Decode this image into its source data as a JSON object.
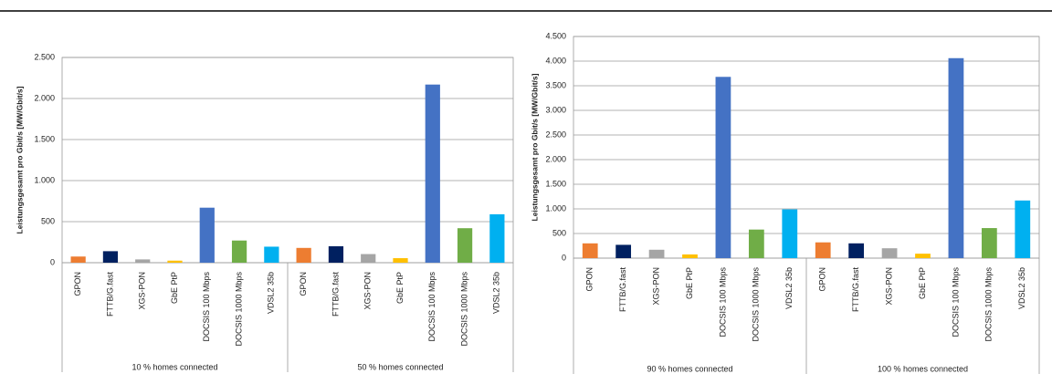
{
  "chart_data": [
    {
      "type": "bar",
      "y_label": "Leistungsgesamt pro Gbit/s [MW/Gbit/s]",
      "categories": [
        "GPON",
        "FTTB/G.fast",
        "XGS-PON",
        "GbE PtP",
        "DOCSIS 100 Mbps",
        "DOCSIS 1000 Mbps",
        "VDSL2 35b"
      ],
      "colors": [
        "#ed7d31",
        "#002060",
        "#a5a5a5",
        "#ffc000",
        "#4472c4",
        "#70ad47",
        "#00b0f0"
      ],
      "groups": [
        {
          "name": "10 % homes connected",
          "values": [
            75,
            140,
            40,
            25,
            670,
            270,
            195
          ]
        },
        {
          "name": "50 % homes connected",
          "values": [
            180,
            200,
            105,
            55,
            2170,
            420,
            590
          ]
        }
      ],
      "ylim": [
        0,
        2500
      ],
      "yticks": [
        0,
        500,
        {
          "value": 1000,
          "label": "1.000"
        },
        {
          "value": 1500,
          "label": "1.500"
        },
        {
          "value": 2000,
          "label": "2.000"
        },
        {
          "value": 2500,
          "label": "2.500"
        }
      ],
      "grid": true
    },
    {
      "type": "bar",
      "y_label": "Leistungsgesamt pro Gbit/s [MW/Gbit/s]",
      "categories": [
        "GPON",
        "FTTB/G.fast",
        "XGS-PON",
        "GbE PtP",
        "DOCSIS 100 Mbps",
        "DOCSIS 1000 Mbps",
        "VDSL2 35b"
      ],
      "colors": [
        "#ed7d31",
        "#002060",
        "#a5a5a5",
        "#ffc000",
        "#4472c4",
        "#70ad47",
        "#00b0f0"
      ],
      "groups": [
        {
          "name": "90 % homes connected",
          "values": [
            300,
            270,
            170,
            75,
            3680,
            580,
            990
          ]
        },
        {
          "name": "100 % homes connected",
          "values": [
            320,
            300,
            200,
            90,
            4060,
            610,
            1170
          ]
        }
      ],
      "ylim": [
        0,
        4500
      ],
      "yticks": [
        0,
        500,
        {
          "value": 1000,
          "label": "1.000"
        },
        {
          "value": 1500,
          "label": "1.500"
        },
        {
          "value": 2000,
          "label": "2.000"
        },
        {
          "value": 2500,
          "label": "2.500"
        },
        {
          "value": 3000,
          "label": "3.000"
        },
        {
          "value": 3500,
          "label": "3.500"
        },
        {
          "value": 4000,
          "label": "4.000"
        },
        {
          "value": 4500,
          "label": "4.500"
        }
      ],
      "grid": true
    }
  ]
}
